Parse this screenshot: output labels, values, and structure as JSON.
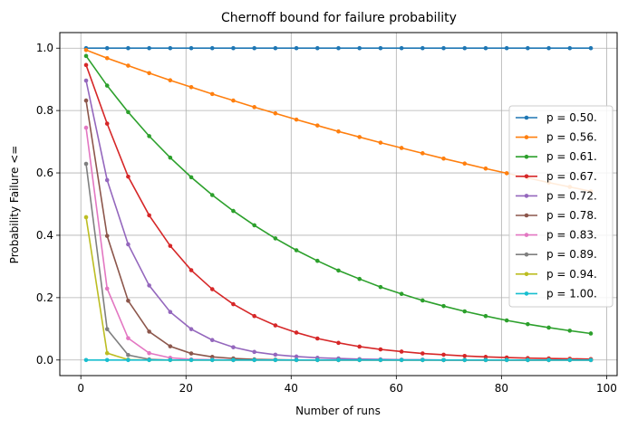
{
  "chart_data": {
    "type": "line",
    "title": "Chernoff bound for failure probability",
    "xlabel": "Number of runs",
    "ylabel": "Probability Failure <=",
    "xlim": [
      -4,
      102
    ],
    "ylim": [
      -0.05,
      1.05
    ],
    "xticks": [
      0,
      20,
      40,
      60,
      80,
      100
    ],
    "yticks": [
      0.0,
      0.2,
      0.4,
      0.6,
      0.8,
      1.0
    ],
    "xtick_labels": [
      "0",
      "20",
      "40",
      "60",
      "80",
      "100"
    ],
    "ytick_labels": [
      "0.0",
      "0.2",
      "0.4",
      "0.6",
      "0.8",
      "1.0"
    ],
    "grid": true,
    "legend_position": "center-right",
    "x": [
      1,
      5,
      9,
      13,
      17,
      21,
      25,
      29,
      33,
      37,
      41,
      45,
      49,
      53,
      57,
      61,
      65,
      69,
      73,
      77,
      81,
      85,
      89,
      93,
      97
    ],
    "series": [
      {
        "name": "p = 0.50.",
        "color": "#1f77b4",
        "values": [
          1.0,
          1.0,
          1.0,
          1.0,
          1.0,
          1.0,
          1.0,
          1.0,
          1.0,
          1.0,
          1.0,
          1.0,
          1.0,
          1.0,
          1.0,
          1.0,
          1.0,
          1.0,
          1.0,
          1.0,
          1.0,
          1.0,
          1.0,
          1.0,
          1.0
        ]
      },
      {
        "name": "p = 0.56.",
        "color": "#ff7f0e",
        "values": [
          0.994,
          0.968,
          0.944,
          0.92,
          0.897,
          0.875,
          0.853,
          0.832,
          0.811,
          0.791,
          0.771,
          0.752,
          0.733,
          0.715,
          0.697,
          0.68,
          0.663,
          0.646,
          0.63,
          0.614,
          0.599,
          0.584,
          0.569,
          0.555,
          0.541
        ]
      },
      {
        "name": "p = 0.61.",
        "color": "#2ca02c",
        "values": [
          0.975,
          0.88,
          0.795,
          0.718,
          0.649,
          0.586,
          0.529,
          0.478,
          0.432,
          0.39,
          0.352,
          0.318,
          0.287,
          0.26,
          0.234,
          0.212,
          0.191,
          0.173,
          0.156,
          0.141,
          0.127,
          0.115,
          0.104,
          0.094,
          0.085
        ]
      },
      {
        "name": "p = 0.67.",
        "color": "#d62728",
        "values": [
          0.946,
          0.758,
          0.588,
          0.464,
          0.366,
          0.288,
          0.227,
          0.179,
          0.141,
          0.111,
          0.088,
          0.069,
          0.055,
          0.043,
          0.034,
          0.027,
          0.021,
          0.017,
          0.013,
          0.01,
          0.008,
          0.006,
          0.005,
          0.004,
          0.003
        ]
      },
      {
        "name": "p = 0.72.",
        "color": "#9467bd",
        "values": [
          0.896,
          0.577,
          0.371,
          0.239,
          0.154,
          0.099,
          0.064,
          0.041,
          0.026,
          0.017,
          0.011,
          0.007,
          0.005,
          0.003,
          0.002,
          0.001,
          0.001,
          0.0,
          0.0,
          0.0,
          0.0,
          0.0,
          0.0,
          0.0,
          0.0
        ]
      },
      {
        "name": "p = 0.78.",
        "color": "#8c564b",
        "values": [
          0.832,
          0.398,
          0.19,
          0.091,
          0.044,
          0.021,
          0.01,
          0.005,
          0.002,
          0.001,
          0.0,
          0.0,
          0.0,
          0.0,
          0.0,
          0.0,
          0.0,
          0.0,
          0.0,
          0.0,
          0.0,
          0.0,
          0.0,
          0.0,
          0.0
        ]
      },
      {
        "name": "p = 0.83.",
        "color": "#e377c2",
        "values": [
          0.745,
          0.229,
          0.07,
          0.022,
          0.007,
          0.002,
          0.001,
          0.0,
          0.0,
          0.0,
          0.0,
          0.0,
          0.0,
          0.0,
          0.0,
          0.0,
          0.0,
          0.0,
          0.0,
          0.0,
          0.0,
          0.0,
          0.0,
          0.0,
          0.0
        ]
      },
      {
        "name": "p = 0.89.",
        "color": "#7f7f7f",
        "values": [
          0.629,
          0.099,
          0.016,
          0.002,
          0.0,
          0.0,
          0.0,
          0.0,
          0.0,
          0.0,
          0.0,
          0.0,
          0.0,
          0.0,
          0.0,
          0.0,
          0.0,
          0.0,
          0.0,
          0.0,
          0.0,
          0.0,
          0.0,
          0.0,
          0.0
        ]
      },
      {
        "name": "p = 0.94.",
        "color": "#bcbd22",
        "values": [
          0.458,
          0.022,
          0.001,
          0.0,
          0.0,
          0.0,
          0.0,
          0.0,
          0.0,
          0.0,
          0.0,
          0.0,
          0.0,
          0.0,
          0.0,
          0.0,
          0.0,
          0.0,
          0.0,
          0.0,
          0.0,
          0.0,
          0.0,
          0.0,
          0.0
        ]
      },
      {
        "name": "p = 1.00.",
        "color": "#17becf",
        "values": [
          0.0,
          0.0,
          0.0,
          0.0,
          0.0,
          0.0,
          0.0,
          0.0,
          0.0,
          0.0,
          0.0,
          0.0,
          0.0,
          0.0,
          0.0,
          0.0,
          0.0,
          0.0,
          0.0,
          0.0,
          0.0,
          0.0,
          0.0,
          0.0,
          0.0
        ]
      }
    ]
  }
}
